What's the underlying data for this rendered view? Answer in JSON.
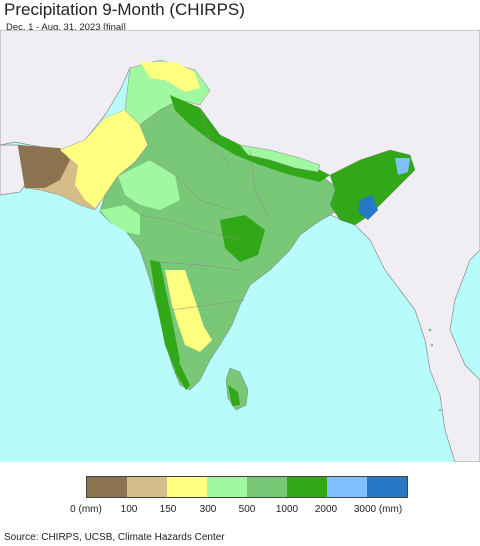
{
  "header": {
    "title": "Precipitation 9-Month (CHIRPS)",
    "subtitle": "Dec. 1 - Aug. 31, 2023 [final]"
  },
  "map": {
    "colors": {
      "ocean": "#b8fbfb",
      "outside_land": "#f0eef2",
      "border": "#8a8a8a"
    }
  },
  "legend": {
    "colors": [
      "#8b7350",
      "#d5bd8a",
      "#ffff80",
      "#a0f8a0",
      "#78c878",
      "#30a818",
      "#80c0ff",
      "#2878c8"
    ],
    "labels": [
      "0 (mm)",
      "100",
      "150",
      "300",
      "500",
      "1000",
      "2000",
      "3000 (mm)"
    ]
  },
  "footer": {
    "source": "Source: CHIRPS, UCSB, Climate Hazards Center"
  }
}
